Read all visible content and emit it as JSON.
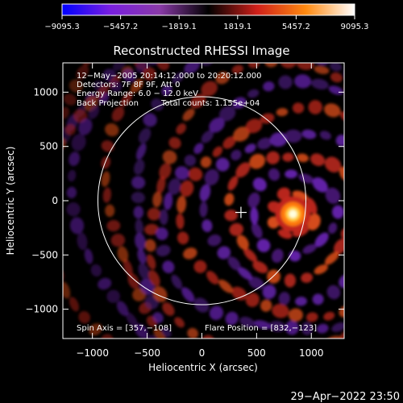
{
  "chart_data": {
    "type": "heatmap",
    "title": "Reconstructed RHESSI Image",
    "xlabel": "Heliocentric X (arcsec)",
    "ylabel": "Heliocentric Y (arcsec)",
    "xlim": [
      -1270,
      1300
    ],
    "ylim": [
      -1270,
      1270
    ],
    "x_ticks": [
      -1000,
      -500,
      0,
      500,
      1000
    ],
    "y_ticks": [
      -1000,
      -500,
      0,
      500,
      1000
    ],
    "x_tick_labels": [
      "−1000",
      "−500",
      "0",
      "500",
      "1000"
    ],
    "y_tick_labels": [
      "−1000",
      "−500",
      "0",
      "500",
      "1000"
    ],
    "colorbar": {
      "range": [
        -9095.3,
        9095.3
      ],
      "tick_values": [
        -9095.3,
        -5457.2,
        -1819.1,
        1819.1,
        5457.2,
        9095.3
      ],
      "tick_labels": [
        "−9095.3",
        "−5457.2",
        "−1819.1",
        "1819.1",
        "5457.2",
        "9095.3"
      ],
      "colors": [
        "#0000ff",
        "#7a1fe0",
        "#8a3aa8",
        "#000000",
        "#d0201a",
        "#ff8a10",
        "#ffffff"
      ]
    },
    "annotations": [
      "12−May−2005 20:14:12.000 to 20:20:12.000",
      "Detectors: 7F 8F 9F, Att 0",
      "Energy Range: 6.0 − 12.0 keV",
      "Back Projection",
      "Total counts: 1.155e+04"
    ],
    "spin_axis_label": "Spin Axis = [357,−108]",
    "flare_position_label": "Flare Position = [832,−123]",
    "spin_axis": [
      357,
      -108
    ],
    "flare_position": [
      832,
      -123
    ],
    "solar_limb_radius": 950,
    "grid": false
  },
  "footer": {
    "timestamp": "29−Apr−2022 23:50"
  }
}
